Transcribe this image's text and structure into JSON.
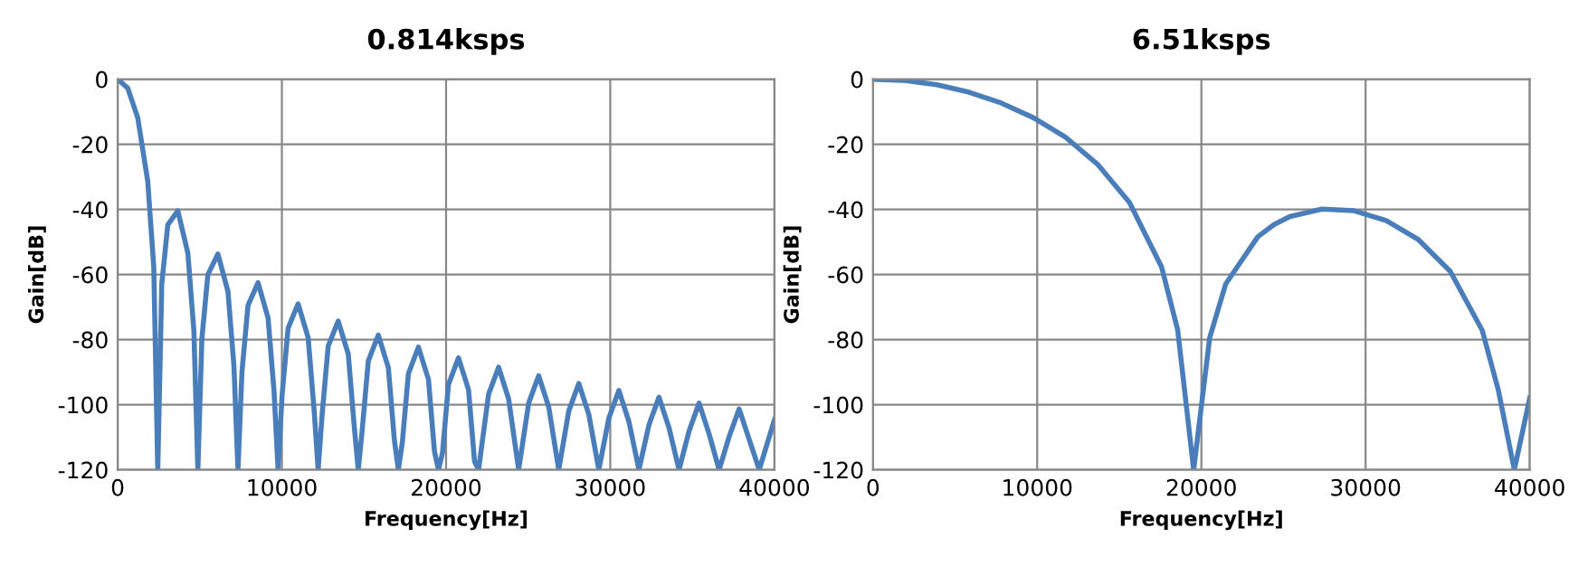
{
  "chart_data": [
    {
      "type": "line",
      "title": "0.814ksps",
      "xlabel": "Frequency[Hz]",
      "ylabel": "Gain[dB]",
      "xlim": [
        0,
        40000
      ],
      "ylim": [
        -120,
        0
      ],
      "xticks": [
        0,
        10000,
        20000,
        30000,
        40000
      ],
      "yticks": [
        -120,
        -100,
        -80,
        -60,
        -40,
        -20,
        0
      ],
      "grid": true,
      "line_style": "solid",
      "series": [
        {
          "color": "#4a7ebb",
          "x": [
            0,
            611,
            1221,
            1832,
            2198,
            2442,
            2686,
            3053,
            3663,
            4274,
            4640,
            4884,
            5128,
            5495,
            6105,
            6716,
            7082,
            7326,
            7570,
            7937,
            8547,
            9158,
            9524,
            9768,
            10012,
            10379,
            10989,
            11600,
            11966,
            12210,
            12454,
            12821,
            13431,
            14042,
            14408,
            14652,
            14896,
            15263,
            15873,
            16484,
            16850,
            17094,
            17338,
            17705,
            18315,
            18926,
            19292,
            19536,
            19780,
            20147,
            20757,
            21368,
            21734,
            21978,
            22589,
            23199,
            23810,
            24420,
            25031,
            25641,
            26252,
            26862,
            27473,
            28083,
            28694,
            29304,
            29915,
            30525,
            31136,
            31746,
            32357,
            32967,
            33578,
            34188,
            34799,
            35409,
            36020,
            36630,
            37241,
            37851,
            38462,
            39072,
            40000
          ],
          "values": [
            0,
            -2.7,
            -11.8,
            -31.4,
            -57.7,
            -120,
            -62.9,
            -44.7,
            -40.4,
            -53.4,
            -77.2,
            -120,
            -79.8,
            -60.0,
            -53.7,
            -65.2,
            -88.2,
            -120,
            -89.9,
            -69.5,
            -62.5,
            -73.3,
            -95.9,
            -120,
            -97.2,
            -76.5,
            -69.0,
            -79.4,
            -101.8,
            -120,
            -102.9,
            -82.0,
            -74.3,
            -84.4,
            -106.7,
            -120,
            -107.6,
            -86.6,
            -78.6,
            -88.6,
            -110.8,
            -120,
            -111.5,
            -90.5,
            -82.3,
            -92.2,
            -114.3,
            -120,
            -114.9,
            -93.8,
            -85.6,
            -95.4,
            -117.4,
            -120,
            -96.8,
            -88.5,
            -98.2,
            -120,
            -99.5,
            -91.1,
            -100.7,
            -120,
            -101.9,
            -93.5,
            -103.0,
            -120,
            -104.1,
            -95.6,
            -105.2,
            -120,
            -106.2,
            -97.7,
            -107.1,
            -120,
            -108.1,
            -99.5,
            -109.0,
            -120,
            -109.8,
            -101.3,
            -110.7,
            -120,
            -104.6
          ]
        }
      ]
    },
    {
      "type": "line",
      "title": "6.51ksps",
      "xlabel": "Frequency[Hz]",
      "ylabel": "Gain[dB]",
      "xlim": [
        0,
        40000
      ],
      "ylim": [
        -120,
        0
      ],
      "xticks": [
        0,
        10000,
        20000,
        30000,
        40000
      ],
      "yticks": [
        -120,
        -100,
        -80,
        -60,
        -40,
        -20,
        0
      ],
      "grid": true,
      "line_style": "solid",
      "series": [
        {
          "color": "#4a7ebb",
          "x": [
            0,
            1953,
            3906,
            5859,
            7812,
            9765,
            11718,
            13671,
            15624,
            17577,
            18554,
            19530,
            20507,
            21483,
            23436,
            24413,
            25389,
            27342,
            29295,
            31248,
            33201,
            35154,
            37107,
            38084,
            39060,
            40000
          ],
          "values": [
            0,
            -0.4,
            -1.7,
            -4.0,
            -7.3,
            -11.8,
            -17.8,
            -26.1,
            -37.9,
            -57.7,
            -76.9,
            -120,
            -79.4,
            -62.9,
            -48.4,
            -44.7,
            -42.2,
            -39.9,
            -40.4,
            -43.4,
            -49.2,
            -59.0,
            -77.2,
            -95.5,
            -120,
            -97.9
          ]
        }
      ]
    }
  ]
}
